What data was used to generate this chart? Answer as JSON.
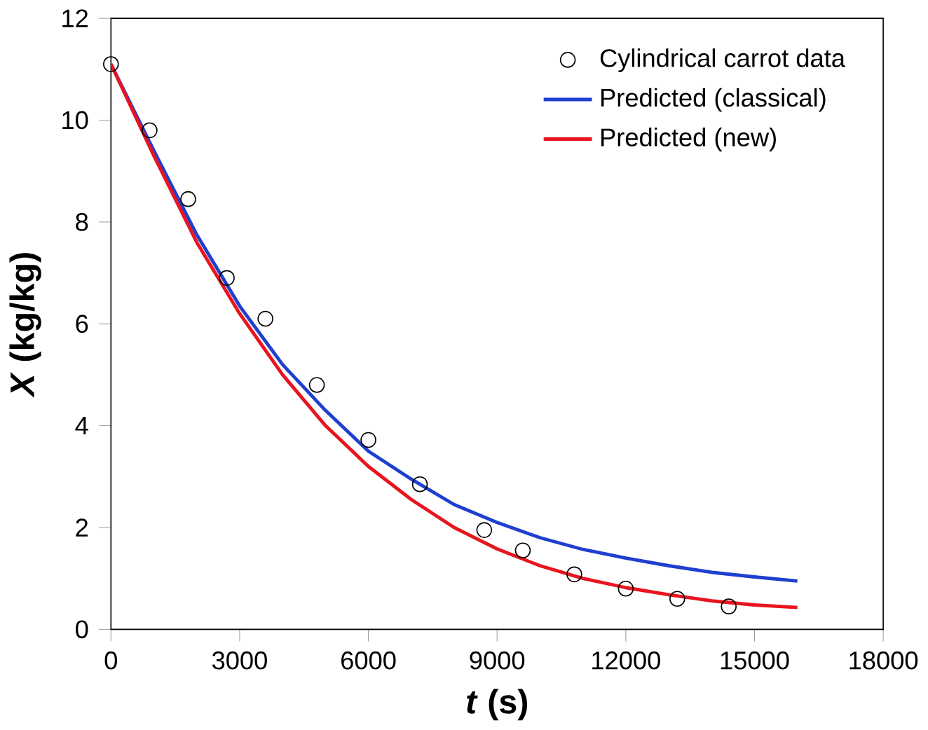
{
  "chart_data": {
    "type": "line",
    "xlabel": "*t* (s)",
    "ylabel": "*X* (kg/kg)",
    "xlim": [
      0,
      18000
    ],
    "ylim": [
      0,
      12
    ],
    "xticks": [
      0,
      3000,
      6000,
      9000,
      12000,
      15000,
      18000
    ],
    "yticks": [
      0,
      2,
      4,
      6,
      8,
      10,
      12
    ],
    "legend": "top right",
    "grid": false,
    "series": [
      {
        "name": "Cylindrical carrot data",
        "type": "scatter",
        "marker": "circle",
        "color": "#000000",
        "x": [
          0,
          900,
          1800,
          2700,
          3600,
          4800,
          6000,
          7200,
          8700,
          9600,
          10800,
          12000,
          13200,
          14400
        ],
        "values": [
          11.1,
          9.8,
          8.45,
          6.9,
          6.1,
          4.8,
          3.72,
          2.85,
          1.95,
          1.55,
          1.08,
          0.8,
          0.6,
          0.45
        ]
      },
      {
        "name": "Predicted (classical)",
        "color": "#1f3fcf",
        "x": [
          0,
          1000,
          2000,
          3000,
          4000,
          5000,
          6000,
          7000,
          8000,
          9000,
          10000,
          11000,
          12000,
          13000,
          14000,
          15000,
          16000
        ],
        "values": [
          11.1,
          9.4,
          7.75,
          6.35,
          5.2,
          4.3,
          3.5,
          2.95,
          2.45,
          2.1,
          1.8,
          1.57,
          1.4,
          1.25,
          1.12,
          1.03,
          0.95
        ]
      },
      {
        "name": "Predicted (new)",
        "color": "#e8141e",
        "x": [
          0,
          1000,
          2000,
          3000,
          4000,
          5000,
          6000,
          7000,
          8000,
          9000,
          10000,
          11000,
          12000,
          13000,
          14000,
          15000,
          16000
        ],
        "values": [
          11.1,
          9.3,
          7.6,
          6.2,
          5.0,
          4.0,
          3.2,
          2.55,
          2.0,
          1.58,
          1.25,
          1.0,
          0.82,
          0.68,
          0.56,
          0.48,
          0.43
        ]
      }
    ]
  }
}
